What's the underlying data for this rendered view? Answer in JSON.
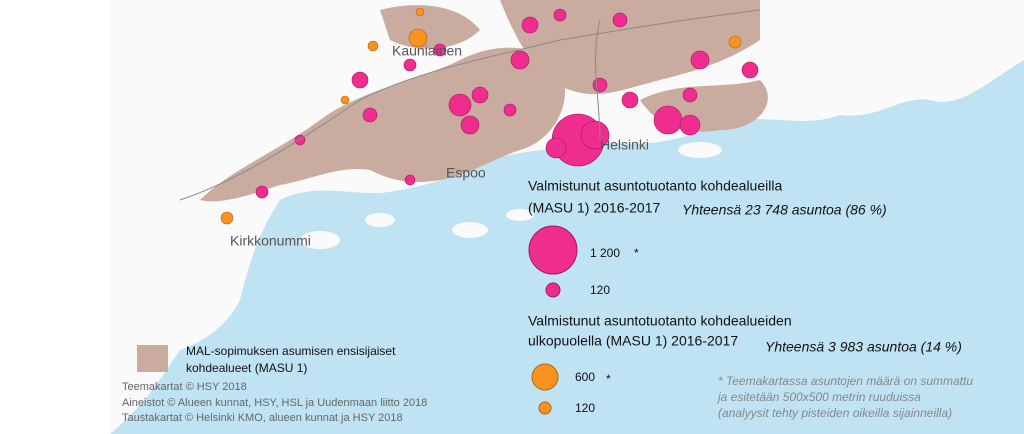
{
  "map": {
    "places": [
      "Kauniainen",
      "Helsinki",
      "Espoo",
      "Kirkkonummi"
    ]
  },
  "legend": {
    "inside": {
      "title": [
        "Valmistunut asuntotuotanto kohdealueilla",
        "(MASU 1) 2016-2017"
      ],
      "total": "Yhteensä 23 748 asuntoa (86 %)",
      "sizes": [
        "1 200",
        "120"
      ],
      "star": "*"
    },
    "outside": {
      "title": [
        "Valmistunut asuntotuotanto kohdealueiden",
        "ulkopuolella (MASU 1) 2016-2017"
      ],
      "total": "Yhteensä 3 983 asuntoa (14 %)",
      "sizes": [
        "600",
        "120"
      ],
      "star": "*"
    },
    "area": [
      "MAL-sopimuksen asumisen ensisijaiset",
      "kohdealueet (MASU 1)"
    ]
  },
  "credits": [
    "Teemakartat © HSY 2018",
    "Aineistot © Alueen kunnat, HSY, HSL ja Uudenmaan liitto 2018",
    "Taustakartat © Helsinki KMO, alueen kunnat ja HSY 2018"
  ],
  "footnote": [
    "* Teemakartassa asuntojen määrä on summattu",
    "ja esitetään 500x500 metrin ruuduissa",
    "(analyysit tehty pisteiden oikeilla sijainneilla)"
  ]
}
